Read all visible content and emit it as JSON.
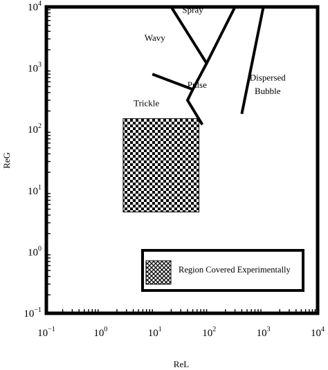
{
  "chart_data": {
    "type": "line",
    "xlabel": "ReL",
    "ylabel": "ReG",
    "xscale": "log",
    "yscale": "log",
    "xlim": [
      0.1,
      10000
    ],
    "ylim": [
      0.1,
      10000
    ],
    "x_ticks": [
      {
        "base": "10",
        "exp": "−1"
      },
      {
        "base": "10",
        "exp": "0"
      },
      {
        "base": "10",
        "exp": "1"
      },
      {
        "base": "10",
        "exp": "2"
      },
      {
        "base": "10",
        "exp": "3"
      },
      {
        "base": "10",
        "exp": "4"
      }
    ],
    "y_ticks": [
      {
        "base": "10",
        "exp": "−1"
      },
      {
        "base": "10",
        "exp": "0"
      },
      {
        "base": "10",
        "exp": "1"
      },
      {
        "base": "10",
        "exp": "2"
      },
      {
        "base": "10",
        "exp": "3"
      },
      {
        "base": "10",
        "exp": "4"
      }
    ],
    "regions": [
      {
        "label": "Spray",
        "x": 50,
        "y": 8000
      },
      {
        "label": "Wavy",
        "x": 10,
        "y": 2800
      },
      {
        "label": "Pulse",
        "x": 60,
        "y": 480
      },
      {
        "label": "Trickle",
        "x": 7,
        "y": 240
      },
      {
        "label": "Dispersed",
        "x": 1200,
        "y": 630
      },
      {
        "label": "Bubble",
        "x": 1200,
        "y": 380
      }
    ],
    "boundaries": [
      [
        [
          20,
          10000
        ],
        [
          90,
          1200
        ],
        [
          300,
          10000
        ]
      ],
      [
        [
          9,
          800
        ],
        [
          50,
          450
        ]
      ],
      [
        [
          90,
          1200
        ],
        [
          50,
          450
        ],
        [
          40,
          300
        ],
        [
          75,
          120
        ]
      ],
      [
        [
          1000,
          10000
        ],
        [
          400,
          180
        ]
      ]
    ],
    "shaded_region": {
      "x": [
        2.6,
        65
      ],
      "y": [
        4.5,
        150
      ]
    },
    "legend": {
      "position": "bottom-right",
      "label": "Region Covered Experimentally"
    }
  }
}
